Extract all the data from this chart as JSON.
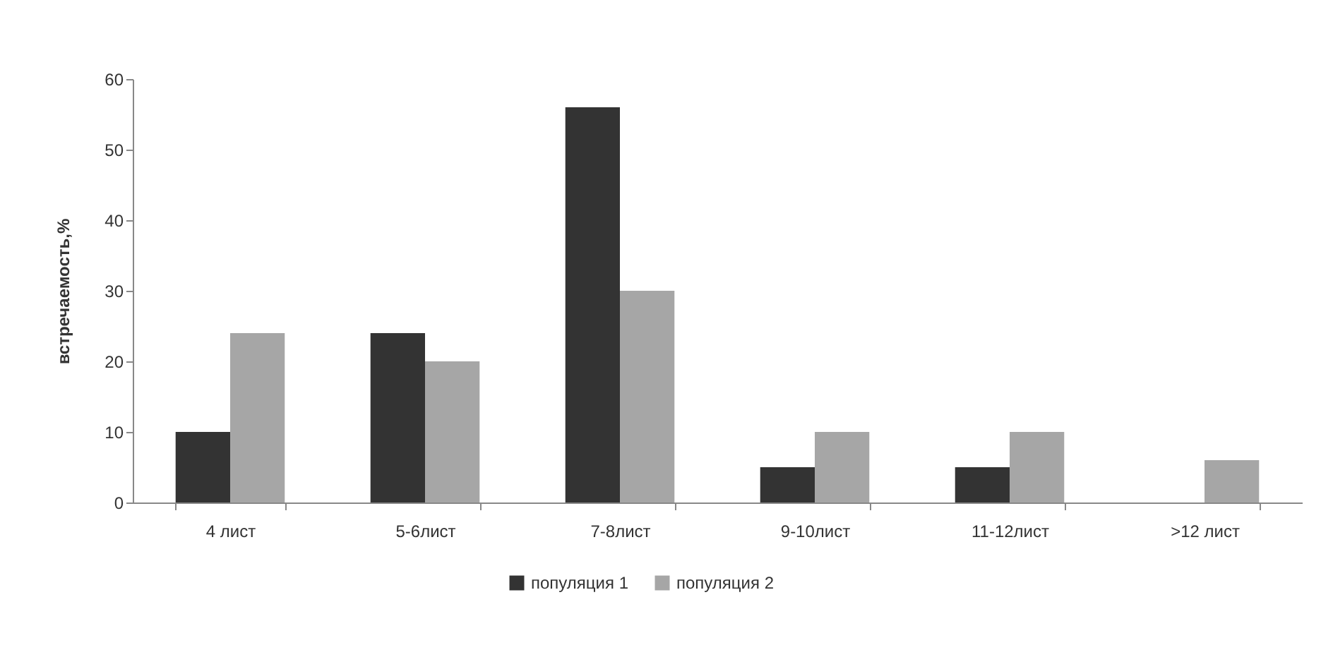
{
  "chart_data": {
    "type": "bar",
    "ylabel": "встречаемость,%",
    "categories": [
      "4 лист",
      "5-6лист",
      "7-8лист",
      "9-10лист",
      "11-12лист",
      ">12 лист"
    ],
    "series": [
      {
        "name": "популяция 1",
        "color": "#333333",
        "values": [
          10,
          24,
          56,
          5,
          5,
          null
        ]
      },
      {
        "name": "популяция 2",
        "color": "#a6a6a6",
        "values": [
          24,
          20,
          30,
          10,
          10,
          6
        ]
      }
    ],
    "ylim": [
      0,
      60
    ],
    "yticks": [
      0,
      10,
      20,
      30,
      40,
      50,
      60
    ],
    "grid": false,
    "legend": "bottom"
  }
}
